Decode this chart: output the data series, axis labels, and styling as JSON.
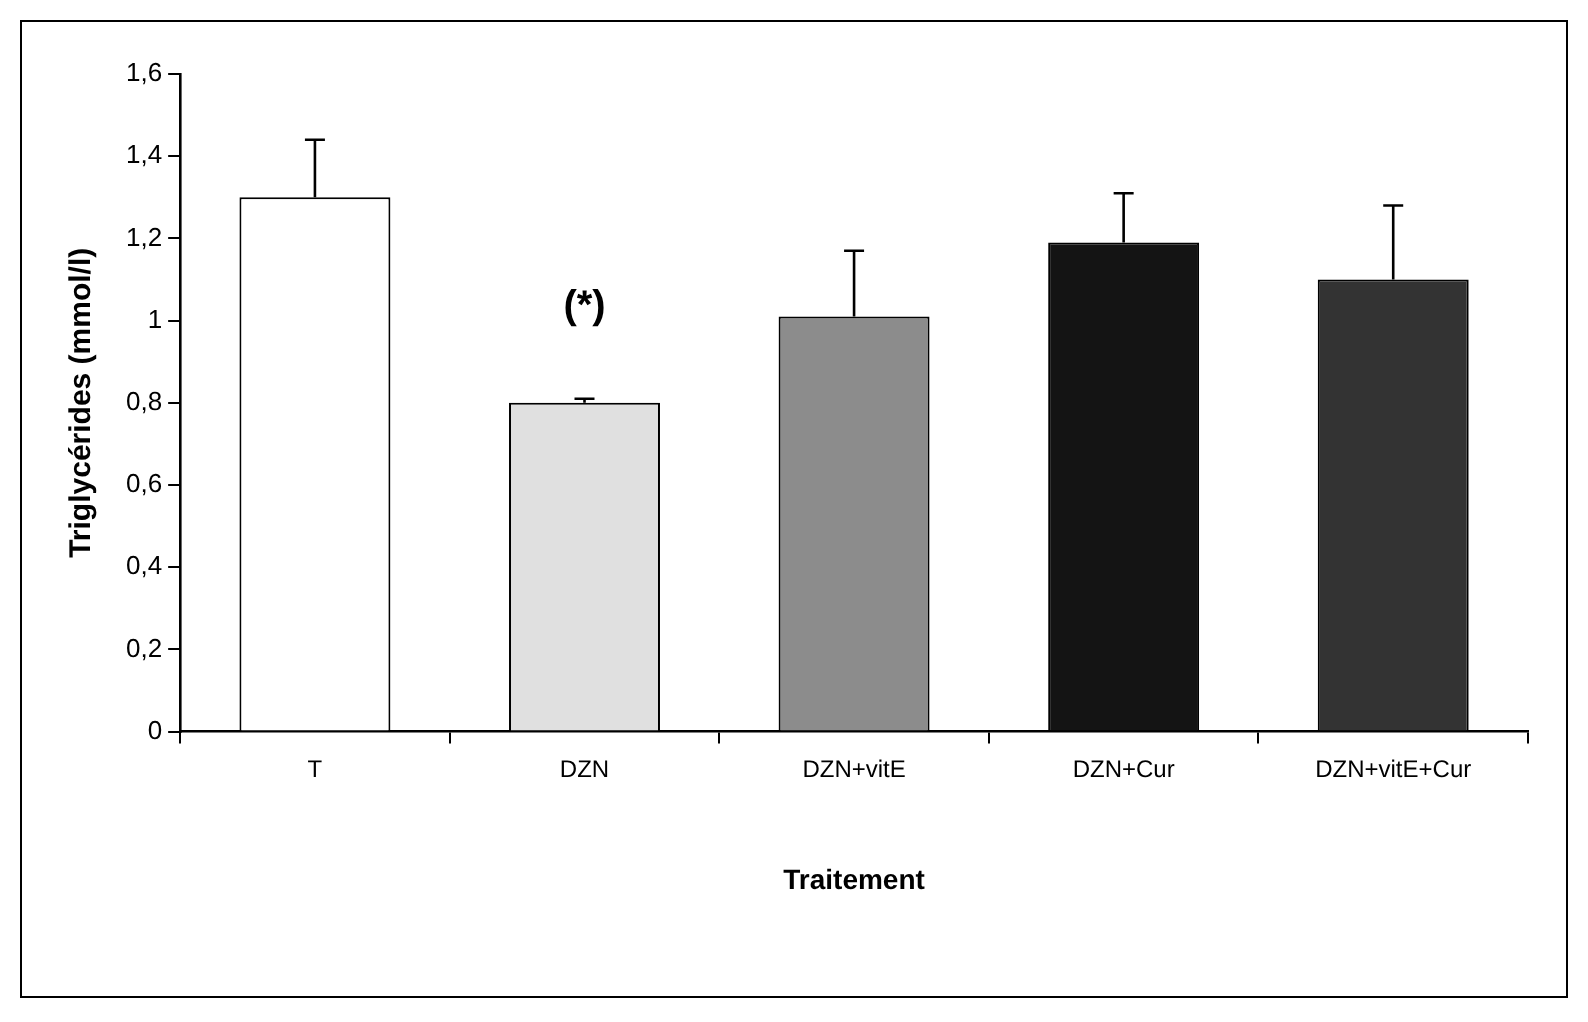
{
  "chart_data": {
    "type": "bar",
    "xlabel": "Traitement",
    "ylabel": "Triglycérides (mmol/l)",
    "categories": [
      "T",
      "DZN",
      "DZN+vitE",
      "DZN+Cur",
      "DZN+vitE+Cur"
    ],
    "values": [
      1.3,
      0.8,
      1.01,
      1.19,
      1.1
    ],
    "colors": [
      "#ffffff",
      "#e0e0e0",
      "#8c8c8c",
      "#141414",
      "#333333"
    ],
    "errors": [
      [
        1.3,
        1.44
      ],
      [
        0.8,
        0.81
      ],
      [
        1.01,
        1.17
      ],
      [
        1.19,
        1.31
      ],
      [
        1.1,
        1.28
      ]
    ],
    "ylim": [
      0,
      1.6
    ],
    "yticks": [
      0,
      {
        "value": 0.2,
        "label": "0,2"
      },
      {
        "value": 0.4,
        "label": "0,4"
      },
      {
        "value": 0.6,
        "label": "0,6"
      },
      {
        "value": 0.8,
        "label": "0,8"
      },
      1,
      {
        "value": 1.2,
        "label": "1,2"
      },
      {
        "value": 1.4,
        "label": "1,4"
      },
      {
        "value": 1.6,
        "label": "1,6"
      }
    ],
    "annotations": [
      "(*)"
    ],
    "grid": false,
    "legend": false
  }
}
